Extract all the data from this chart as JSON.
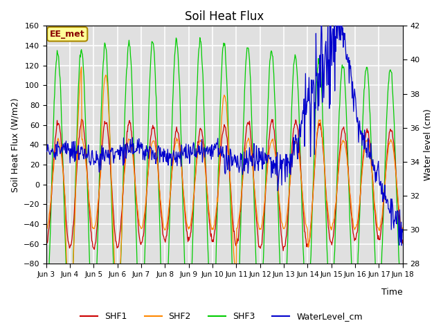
{
  "title": "Soil Heat Flux",
  "ylabel_left": "Soil Heat Flux (W/m2)",
  "ylabel_right": "Water level (cm)",
  "xlabel": "Time",
  "annotation": "EE_met",
  "ylim_left": [
    -80,
    160
  ],
  "ylim_right": [
    28,
    42
  ],
  "xtick_labels": [
    "Jun 3",
    "Jun 4",
    "Jun 5",
    "Jun 6",
    "Jun 7",
    "Jun 8",
    "Jun 9",
    "Jun 10",
    "Jun 11",
    "Jun 12",
    "Jun 13",
    "Jun 14",
    "Jun 15",
    "Jun 16",
    "Jun 17",
    "Jun 18"
  ],
  "colors": {
    "SHF1": "#cc0000",
    "SHF2": "#ff8800",
    "SHF3": "#00cc00",
    "WaterLevel_cm": "#0000cc"
  },
  "bg_color": "#e0e0e0",
  "annotation_text_color": "#880000",
  "annotation_bg": "#ffff99",
  "annotation_border": "#aa8800"
}
